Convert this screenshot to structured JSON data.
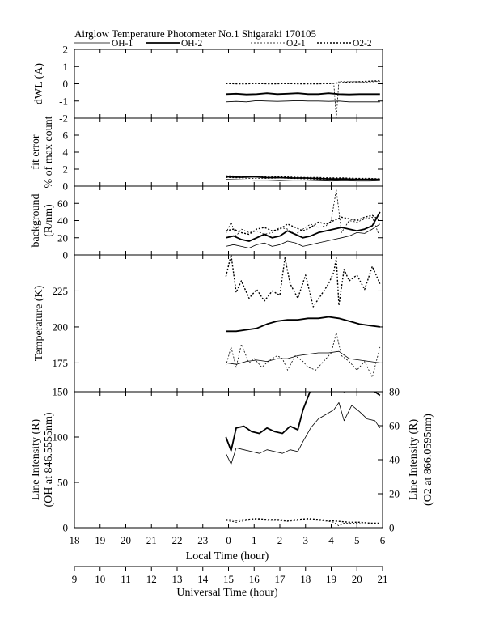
{
  "header": {
    "title": "Airglow Temperature Photometer No.1  Shigaraki  170105"
  },
  "legend": [
    {
      "name": "OH-1",
      "style": "thin-solid"
    },
    {
      "name": "OH-2",
      "style": "thick-solid"
    },
    {
      "name": "O2-1",
      "style": "thin-dashed"
    },
    {
      "name": "O2-2",
      "style": "thick-dashed"
    }
  ],
  "colors": {
    "line": "#000000",
    "background": "#ffffff"
  },
  "axes": {
    "local_time": {
      "label": "Local Time (hour)",
      "ticks": [
        "18",
        "19",
        "20",
        "21",
        "22",
        "23",
        "0",
        "1",
        "2",
        "3",
        "4",
        "5",
        "6"
      ]
    },
    "universal_time": {
      "label": "Universal Time (hour)",
      "ticks": [
        "9",
        "10",
        "11",
        "12",
        "13",
        "14",
        "15",
        "16",
        "17",
        "18",
        "19",
        "20",
        "21"
      ]
    }
  },
  "chart_data": [
    {
      "id": "dwl",
      "type": "line",
      "ylabel": "dWL (A)",
      "ylim": [
        -2,
        2
      ],
      "yticks": [
        -2,
        -1,
        0,
        1,
        2
      ],
      "xlim": [
        18,
        30
      ],
      "series": [
        {
          "name": "OH-1",
          "x": [
            23.9,
            24.3,
            24.7,
            25.1,
            25.5,
            25.9,
            26.3,
            26.7,
            27.1,
            27.5,
            27.9,
            28.3,
            28.7,
            29.1,
            29.5,
            29.9
          ],
          "y": [
            -1.05,
            -1.02,
            -1.05,
            -0.98,
            -1.0,
            -1.02,
            -1.0,
            -0.98,
            -1.0,
            -1.0,
            -1.02,
            -1.0,
            -1.05,
            -1.05,
            -1.05,
            -1.05
          ]
        },
        {
          "name": "OH-2",
          "x": [
            23.9,
            24.3,
            24.7,
            25.1,
            25.5,
            25.9,
            26.3,
            26.7,
            27.1,
            27.5,
            27.9,
            28.3,
            28.7,
            29.1,
            29.5,
            29.9
          ],
          "y": [
            -0.6,
            -0.58,
            -0.62,
            -0.6,
            -0.55,
            -0.6,
            -0.58,
            -0.55,
            -0.6,
            -0.6,
            -0.55,
            -0.6,
            -0.62,
            -0.6,
            -0.6,
            -0.6
          ]
        },
        {
          "name": "O2-1",
          "x": [
            23.9,
            24.3,
            24.7,
            25.1,
            25.5,
            25.9,
            26.3,
            26.7,
            27.1,
            27.5,
            27.9,
            28.1,
            28.2,
            28.3,
            28.5,
            28.9,
            29.3,
            29.7,
            29.9
          ],
          "y": [
            0.0,
            0.0,
            0.02,
            0.0,
            0.0,
            0.02,
            0.0,
            0.0,
            0.0,
            0.02,
            0.0,
            0.02,
            -2.0,
            0.15,
            0.12,
            0.12,
            0.1,
            0.12,
            0.15
          ]
        },
        {
          "name": "O2-2",
          "x": [
            23.9,
            24.3,
            24.7,
            25.1,
            25.5,
            25.9,
            26.3,
            26.7,
            27.1,
            27.5,
            27.9,
            28.3,
            28.7,
            29.1,
            29.5,
            29.9
          ],
          "y": [
            0.02,
            0.0,
            0.0,
            0.02,
            0.0,
            0.0,
            0.02,
            0.0,
            0.0,
            0.0,
            0.02,
            0.05,
            0.1,
            0.12,
            0.15,
            0.18
          ]
        }
      ]
    },
    {
      "id": "fit-error",
      "type": "line",
      "ylabel": [
        "fit error",
        "% of max count"
      ],
      "ylim": [
        0,
        8
      ],
      "yticks": [
        0,
        2,
        4,
        6
      ],
      "xlim": [
        18,
        30
      ],
      "series": [
        {
          "name": "OH-1",
          "x": [
            23.9,
            24.5,
            25.0,
            25.5,
            26.0,
            26.5,
            27.0,
            27.5,
            28.0,
            28.5,
            29.0,
            29.5,
            29.9
          ],
          "y": [
            0.8,
            0.75,
            0.7,
            0.7,
            0.65,
            0.7,
            0.7,
            0.65,
            0.6,
            0.65,
            0.6,
            0.6,
            0.65
          ]
        },
        {
          "name": "OH-2",
          "x": [
            23.9,
            24.5,
            25.0,
            25.5,
            26.0,
            26.5,
            27.0,
            27.5,
            28.0,
            28.5,
            29.0,
            29.5,
            29.9
          ],
          "y": [
            1.1,
            1.05,
            1.1,
            1.0,
            1.0,
            0.95,
            0.95,
            0.9,
            0.85,
            0.85,
            0.8,
            0.8,
            0.8
          ]
        },
        {
          "name": "O2-1",
          "x": [
            23.9,
            24.5,
            25.0,
            25.5,
            26.0,
            26.5,
            27.0,
            27.5,
            28.0,
            28.5,
            29.0,
            29.5,
            29.9
          ],
          "y": [
            1.0,
            0.95,
            0.9,
            0.9,
            0.95,
            0.9,
            0.85,
            0.8,
            0.8,
            0.75,
            0.75,
            0.7,
            0.7
          ]
        },
        {
          "name": "O2-2",
          "x": [
            23.9,
            24.5,
            25.0,
            25.5,
            26.0,
            26.5,
            27.0,
            27.5,
            28.0,
            28.5,
            29.0,
            29.5,
            29.9
          ],
          "y": [
            1.2,
            1.15,
            1.1,
            1.15,
            1.1,
            1.05,
            1.0,
            1.0,
            0.95,
            0.95,
            0.9,
            0.9,
            0.85
          ]
        }
      ]
    },
    {
      "id": "background",
      "type": "line",
      "ylabel": [
        "background",
        "(R/nm)"
      ],
      "ylim": [
        0,
        80
      ],
      "yticks": [
        0,
        20,
        40,
        60
      ],
      "xlim": [
        18,
        30
      ],
      "series": [
        {
          "name": "OH-1",
          "x": [
            23.9,
            24.2,
            24.5,
            24.8,
            25.1,
            25.4,
            25.7,
            26.0,
            26.3,
            26.6,
            26.9,
            27.2,
            27.5,
            27.8,
            28.1,
            28.4,
            28.7,
            29.0,
            29.3,
            29.6,
            29.9
          ],
          "y": [
            10,
            12,
            10,
            8,
            12,
            14,
            10,
            12,
            16,
            14,
            10,
            12,
            14,
            16,
            18,
            20,
            22,
            26,
            25,
            30,
            36
          ]
        },
        {
          "name": "OH-2",
          "x": [
            23.9,
            24.2,
            24.5,
            24.8,
            25.1,
            25.4,
            25.7,
            26.0,
            26.3,
            26.6,
            26.9,
            27.2,
            27.5,
            27.8,
            28.1,
            28.4,
            28.7,
            29.0,
            29.3,
            29.6,
            29.9
          ],
          "y": [
            20,
            22,
            18,
            16,
            20,
            24,
            20,
            22,
            28,
            24,
            20,
            22,
            26,
            28,
            30,
            32,
            30,
            28,
            30,
            34,
            50
          ]
        },
        {
          "name": "O2-1",
          "x": [
            23.9,
            24.1,
            24.3,
            24.5,
            24.8,
            25.1,
            25.4,
            25.7,
            26.0,
            26.3,
            26.6,
            26.9,
            27.2,
            27.5,
            27.8,
            28.0,
            28.2,
            28.4,
            28.7,
            29.0,
            29.3,
            29.6,
            29.9
          ],
          "y": [
            25,
            38,
            22,
            30,
            26,
            28,
            24,
            26,
            32,
            30,
            24,
            30,
            36,
            32,
            34,
            40,
            76,
            26,
            40,
            38,
            42,
            44,
            20
          ]
        },
        {
          "name": "O2-2",
          "x": [
            23.9,
            24.2,
            24.5,
            24.8,
            25.1,
            25.4,
            25.7,
            26.0,
            26.3,
            26.6,
            26.9,
            27.2,
            27.5,
            27.8,
            28.1,
            28.4,
            28.7,
            29.0,
            29.3,
            29.6,
            29.9
          ],
          "y": [
            28,
            30,
            26,
            24,
            30,
            32,
            28,
            30,
            36,
            32,
            28,
            32,
            38,
            36,
            40,
            44,
            42,
            40,
            44,
            46,
            40
          ]
        }
      ]
    },
    {
      "id": "temperature",
      "type": "line",
      "ylabel": "Temperature (K)",
      "ylim": [
        155,
        250
      ],
      "yticks": [
        175,
        200,
        225
      ],
      "xlim": [
        18,
        30
      ],
      "series": [
        {
          "name": "OH-1",
          "x": [
            23.9,
            24.3,
            24.7,
            25.1,
            25.5,
            25.9,
            26.3,
            26.7,
            27.1,
            27.5,
            27.9,
            28.3,
            28.7,
            29.1,
            29.5,
            29.9
          ],
          "y": [
            175,
            174,
            176,
            177,
            176,
            178,
            178,
            180,
            181,
            182,
            182,
            183,
            178,
            177,
            176,
            175
          ]
        },
        {
          "name": "OH-2",
          "x": [
            23.9,
            24.3,
            24.7,
            25.1,
            25.5,
            25.9,
            26.3,
            26.7,
            27.1,
            27.5,
            27.9,
            28.3,
            28.7,
            29.1,
            29.5,
            29.9
          ],
          "y": [
            197,
            197,
            198,
            199,
            202,
            204,
            205,
            205,
            206,
            206,
            207,
            206,
            204,
            202,
            201,
            200
          ]
        },
        {
          "name": "O2-1",
          "x": [
            23.9,
            24.1,
            24.3,
            24.5,
            24.8,
            25.0,
            25.3,
            25.6,
            25.9,
            26.1,
            26.3,
            26.6,
            26.9,
            27.1,
            27.4,
            27.7,
            28.0,
            28.2,
            28.4,
            28.7,
            29.0,
            29.3,
            29.6,
            29.9
          ],
          "y": [
            173,
            186,
            172,
            188,
            175,
            178,
            172,
            177,
            180,
            178,
            170,
            180,
            176,
            172,
            170,
            176,
            182,
            196,
            180,
            176,
            170,
            176,
            165,
            186
          ]
        },
        {
          "name": "O2-2",
          "x": [
            23.9,
            24.1,
            24.3,
            24.5,
            24.8,
            25.1,
            25.4,
            25.7,
            26.0,
            26.2,
            26.4,
            26.7,
            27.0,
            27.3,
            27.6,
            27.9,
            28.1,
            28.2,
            28.3,
            28.5,
            28.7,
            29.0,
            29.3,
            29.6,
            29.9
          ],
          "y": [
            235,
            250,
            224,
            232,
            220,
            226,
            218,
            225,
            222,
            248,
            230,
            220,
            236,
            214,
            222,
            230,
            238,
            248,
            215,
            240,
            232,
            236,
            226,
            242,
            230
          ]
        }
      ]
    },
    {
      "id": "line-intensity",
      "type": "line",
      "ylabel": [
        "Line Intensity (R)",
        "(OH at 846.5555nm)"
      ],
      "ylabel_right": [
        "Line Intensity (R)",
        "(O2 at 866.0595nm)"
      ],
      "ylim": [
        0,
        150
      ],
      "ylim_right": [
        0,
        80
      ],
      "yticks": [
        0,
        50,
        100,
        150
      ],
      "yticks_right": [
        0,
        20,
        40,
        60,
        80
      ],
      "xlim": [
        18,
        30
      ],
      "series": [
        {
          "name": "OH-1",
          "x": [
            23.9,
            24.1,
            24.3,
            24.6,
            24.9,
            25.2,
            25.5,
            25.8,
            26.1,
            26.4,
            26.7,
            26.9,
            27.2,
            27.5,
            27.8,
            28.1,
            28.3,
            28.5,
            28.8,
            29.1,
            29.4,
            29.7,
            29.9
          ],
          "y": [
            82,
            70,
            88,
            86,
            84,
            82,
            86,
            84,
            82,
            86,
            84,
            95,
            110,
            120,
            125,
            130,
            138,
            118,
            135,
            128,
            120,
            118,
            110
          ]
        },
        {
          "name": "OH-2",
          "x": [
            23.9,
            24.1,
            24.3,
            24.6,
            24.9,
            25.2,
            25.5,
            25.8,
            26.1,
            26.4,
            26.7,
            26.9,
            27.2,
            27.5,
            27.8,
            28.1,
            28.3,
            28.5,
            28.8,
            29.1,
            29.4,
            29.7,
            29.9
          ],
          "y": [
            100,
            85,
            110,
            112,
            106,
            104,
            110,
            106,
            104,
            112,
            108,
            130,
            152,
            158,
            162,
            165,
            175,
            150,
            170,
            158,
            160,
            150,
            146
          ]
        },
        {
          "name": "O2-1",
          "x": [
            23.9,
            24.3,
            24.7,
            25.1,
            25.5,
            25.9,
            26.3,
            26.7,
            27.1,
            27.5,
            27.9,
            28.1,
            28.3,
            28.5,
            28.9,
            29.3,
            29.7,
            29.9
          ],
          "y": [
            8,
            6,
            8,
            9,
            8,
            8,
            7,
            8,
            9,
            8,
            7,
            6,
            2,
            5,
            5,
            4,
            4,
            4
          ]
        },
        {
          "name": "O2-2",
          "x": [
            23.9,
            24.3,
            24.7,
            25.1,
            25.5,
            25.9,
            26.3,
            26.7,
            27.1,
            27.5,
            27.9,
            28.3,
            28.7,
            29.1,
            29.5,
            29.9
          ],
          "y": [
            9,
            8,
            9,
            10,
            9,
            9,
            8,
            9,
            10,
            9,
            8,
            7,
            6,
            6,
            5,
            5
          ]
        }
      ]
    }
  ]
}
